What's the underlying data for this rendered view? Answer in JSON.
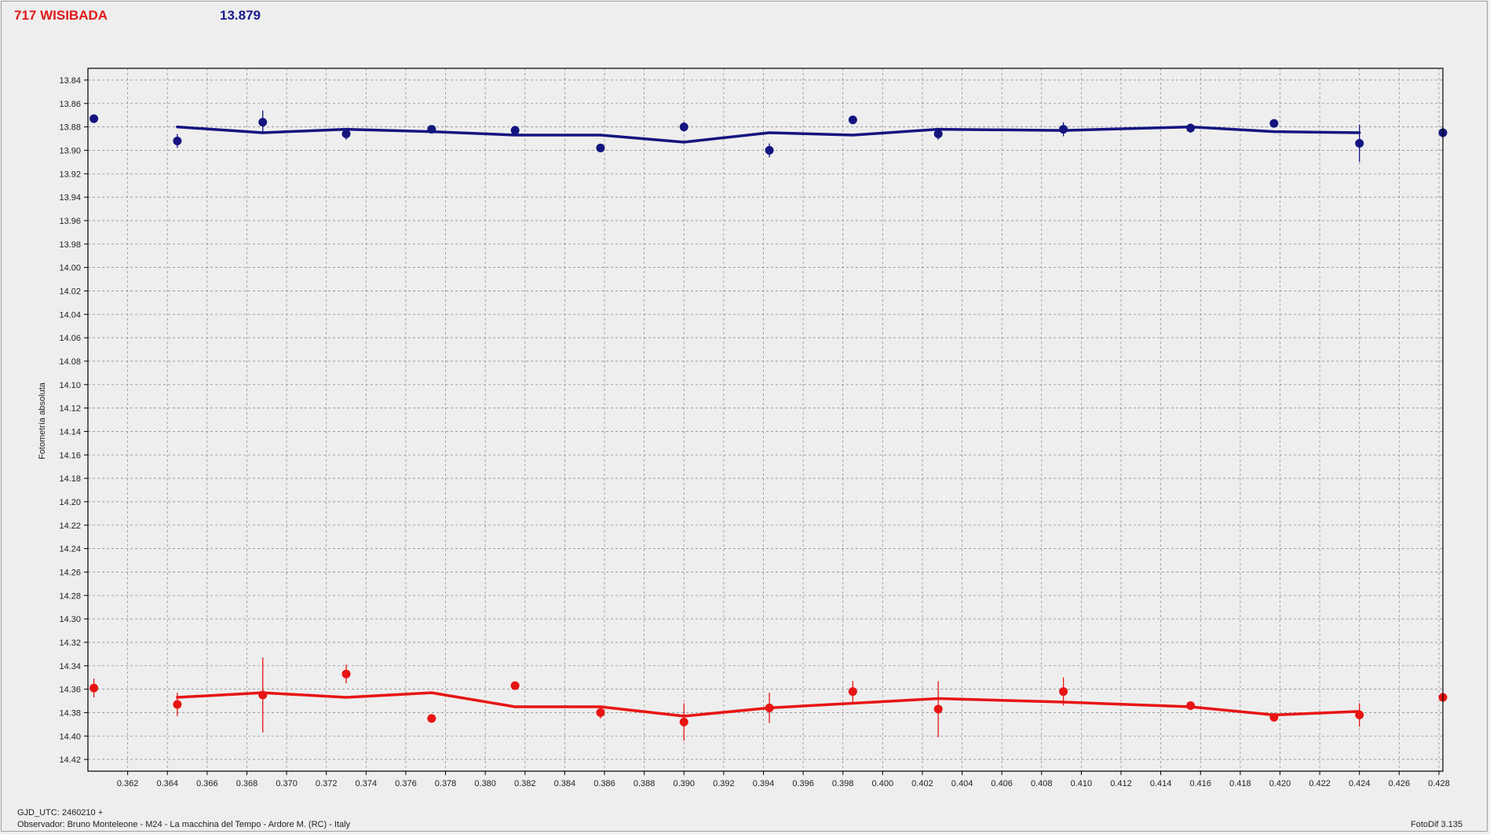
{
  "header": {
    "object_name": "717 WISIBADA",
    "magnitude": "13.879"
  },
  "footer": {
    "gjd_label": "GJD_UTC: 2460210 +",
    "observer": "Observador: Bruno Monteleone - M24 - La macchina del Tempo - Ardore M. (RC) - Italy",
    "software": "FotoDif 3.135"
  },
  "colors": {
    "blue_series": "#141480",
    "red_series": "#e81414",
    "grid": "#909090",
    "plot_background": "#eeeeee"
  },
  "chart_data": {
    "type": "scatter",
    "title": "",
    "xlabel": "",
    "ylabel": "Fotometría absoluta",
    "xlim": [
      0.36,
      0.4282
    ],
    "ylim": [
      13.83,
      14.43
    ],
    "y_inverted": true,
    "grid": true,
    "x_ticks": [
      "0.362",
      "0.364",
      "0.366",
      "0.368",
      "0.370",
      "0.372",
      "0.374",
      "0.376",
      "0.378",
      "0.380",
      "0.382",
      "0.384",
      "0.386",
      "0.388",
      "0.390",
      "0.392",
      "0.394",
      "0.396",
      "0.398",
      "0.400",
      "0.402",
      "0.404",
      "0.406",
      "0.408",
      "0.410",
      "0.412",
      "0.414",
      "0.416",
      "0.418",
      "0.420",
      "0.422",
      "0.424",
      "0.426",
      "0.428"
    ],
    "y_ticks": [
      "13.84",
      "13.86",
      "13.88",
      "13.90",
      "13.92",
      "13.94",
      "13.96",
      "13.98",
      "14.00",
      "14.02",
      "14.04",
      "14.06",
      "14.08",
      "14.10",
      "14.12",
      "14.14",
      "14.16",
      "14.18",
      "14.20",
      "14.22",
      "14.24",
      "14.26",
      "14.28",
      "14.30",
      "14.32",
      "14.34",
      "14.36",
      "14.38",
      "14.40",
      "14.42"
    ],
    "series": [
      {
        "color": "#141480",
        "points": [
          {
            "x": 0.3603,
            "y": 13.873,
            "err": 0.002
          },
          {
            "x": 0.3645,
            "y": 13.892,
            "err": 0.006
          },
          {
            "x": 0.3688,
            "y": 13.876,
            "err": 0.01
          },
          {
            "x": 0.373,
            "y": 13.886,
            "err": 0.005
          },
          {
            "x": 0.3773,
            "y": 13.882,
            "err": 0.003
          },
          {
            "x": 0.3815,
            "y": 13.883,
            "err": 0.004
          },
          {
            "x": 0.3858,
            "y": 13.898,
            "err": 0.003
          },
          {
            "x": 0.39,
            "y": 13.88,
            "err": 0.004
          },
          {
            "x": 0.3943,
            "y": 13.9,
            "err": 0.006
          },
          {
            "x": 0.3985,
            "y": 13.874,
            "err": 0.003
          },
          {
            "x": 0.4028,
            "y": 13.886,
            "err": 0.005
          },
          {
            "x": 0.4091,
            "y": 13.882,
            "err": 0.006
          },
          {
            "x": 0.4155,
            "y": 13.881,
            "err": 0.004
          },
          {
            "x": 0.4197,
            "y": 13.877,
            "err": 0.003
          },
          {
            "x": 0.424,
            "y": 13.894,
            "err": 0.016
          },
          {
            "x": 0.4282,
            "y": 13.885,
            "err": 0.005
          }
        ],
        "line": [
          {
            "x": 0.3645,
            "y": 13.88
          },
          {
            "x": 0.3688,
            "y": 13.885
          },
          {
            "x": 0.373,
            "y": 13.882
          },
          {
            "x": 0.3773,
            "y": 13.884
          },
          {
            "x": 0.3815,
            "y": 13.887
          },
          {
            "x": 0.3858,
            "y": 13.887
          },
          {
            "x": 0.39,
            "y": 13.893
          },
          {
            "x": 0.3943,
            "y": 13.885
          },
          {
            "x": 0.3985,
            "y": 13.887
          },
          {
            "x": 0.4028,
            "y": 13.882
          },
          {
            "x": 0.4091,
            "y": 13.883
          },
          {
            "x": 0.4155,
            "y": 13.88
          },
          {
            "x": 0.4197,
            "y": 13.884
          },
          {
            "x": 0.424,
            "y": 13.885
          }
        ]
      },
      {
        "color": "#e81414",
        "points": [
          {
            "x": 0.3603,
            "y": 14.359,
            "err": 0.008
          },
          {
            "x": 0.3645,
            "y": 14.373,
            "err": 0.01
          },
          {
            "x": 0.3688,
            "y": 14.365,
            "err": 0.032
          },
          {
            "x": 0.373,
            "y": 14.347,
            "err": 0.008
          },
          {
            "x": 0.3773,
            "y": 14.385,
            "err": 0.003
          },
          {
            "x": 0.3815,
            "y": 14.357,
            "err": 0.003
          },
          {
            "x": 0.3858,
            "y": 14.38,
            "err": 0.005
          },
          {
            "x": 0.39,
            "y": 14.388,
            "err": 0.016
          },
          {
            "x": 0.3943,
            "y": 14.376,
            "err": 0.013
          },
          {
            "x": 0.3985,
            "y": 14.362,
            "err": 0.009
          },
          {
            "x": 0.4028,
            "y": 14.377,
            "err": 0.024
          },
          {
            "x": 0.4091,
            "y": 14.362,
            "err": 0.012
          },
          {
            "x": 0.4155,
            "y": 14.374,
            "err": 0.003
          },
          {
            "x": 0.4197,
            "y": 14.384,
            "err": 0.003
          },
          {
            "x": 0.424,
            "y": 14.382,
            "err": 0.01
          },
          {
            "x": 0.4282,
            "y": 14.367,
            "err": 0.003
          }
        ],
        "line": [
          {
            "x": 0.3645,
            "y": 14.367
          },
          {
            "x": 0.3688,
            "y": 14.363
          },
          {
            "x": 0.373,
            "y": 14.367
          },
          {
            "x": 0.3773,
            "y": 14.363
          },
          {
            "x": 0.3815,
            "y": 14.375
          },
          {
            "x": 0.3858,
            "y": 14.375
          },
          {
            "x": 0.39,
            "y": 14.383
          },
          {
            "x": 0.3943,
            "y": 14.376
          },
          {
            "x": 0.3985,
            "y": 14.372
          },
          {
            "x": 0.4028,
            "y": 14.368
          },
          {
            "x": 0.4091,
            "y": 14.371
          },
          {
            "x": 0.4155,
            "y": 14.375
          },
          {
            "x": 0.4197,
            "y": 14.382
          },
          {
            "x": 0.424,
            "y": 14.379
          }
        ]
      }
    ]
  }
}
